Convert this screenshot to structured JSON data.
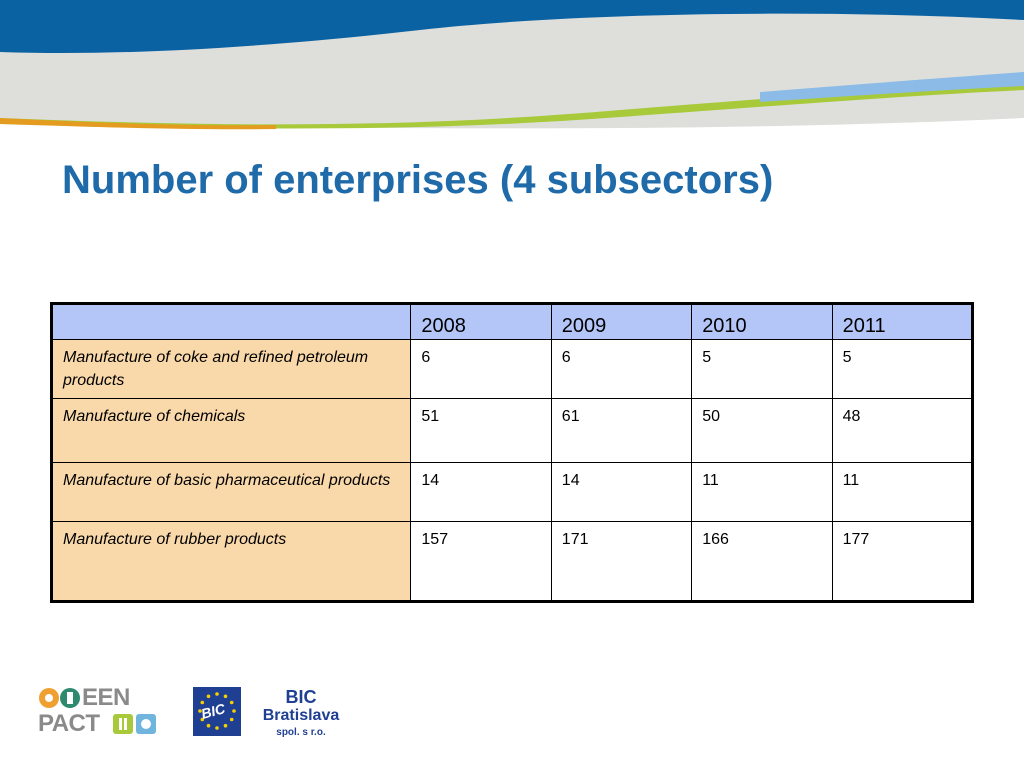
{
  "slide": {
    "title": "Number of enterprises (4 subsectors)"
  },
  "table": {
    "corner": "",
    "years": [
      "2008",
      "2009",
      "2010",
      "2011"
    ],
    "rows": [
      {
        "label": "Manufacture of coke and refined petroleum products",
        "values": [
          "6",
          "6",
          "5",
          "5"
        ]
      },
      {
        "label": "Manufacture of chemicals",
        "values": [
          "51",
          "61",
          "50",
          "48"
        ]
      },
      {
        "label": "Manufacture of basic pharmaceutical products",
        "values": [
          "14",
          "14",
          "11",
          "11"
        ]
      },
      {
        "label": "Manufacture of rubber products",
        "values": [
          "157",
          "171",
          "166",
          "177"
        ]
      }
    ],
    "colors": {
      "header_bg": "#b3c6f7",
      "label_bg": "#f9d8aa",
      "title": "#1f6aa8"
    }
  },
  "logos": {
    "een": {
      "line1": "EEN",
      "line2": "PACT"
    },
    "bic": {
      "flag_text": "BIC",
      "line1": "BIC",
      "line2": "Bratislava",
      "line3": "spol. s r.o."
    }
  }
}
